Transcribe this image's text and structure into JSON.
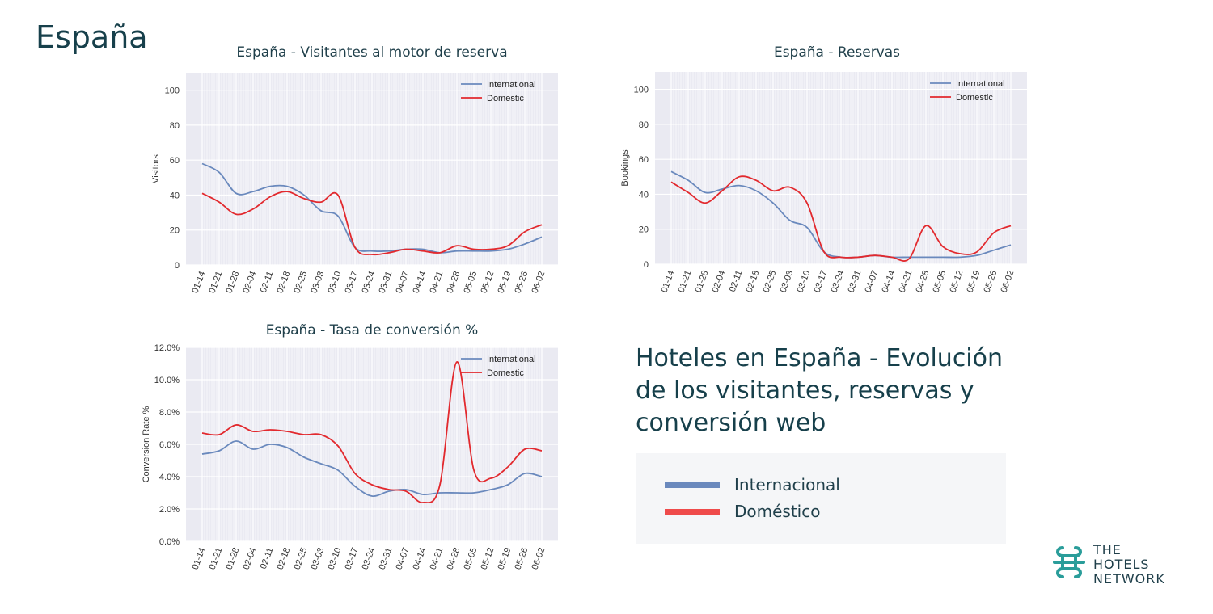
{
  "page": {
    "title": "España"
  },
  "headline": {
    "text": "Hoteles en España - Evolución de los visitantes, reservas y conversión web"
  },
  "legend": {
    "items": [
      {
        "label": "Internacional",
        "color": "#6a89bd"
      },
      {
        "label": "Doméstico",
        "color": "#ef4b4b"
      }
    ]
  },
  "logo": {
    "lines": [
      "THE",
      "HOTELS",
      "NETWORK"
    ],
    "color": "#2a9d9a"
  },
  "colors": {
    "international": "#6a89bd",
    "domestic": "#e2292e",
    "plot_bg": "#eaeaf2"
  },
  "chart_data": [
    {
      "id": "visitors",
      "type": "line",
      "title": "España - Visitantes al motor de reserva",
      "xlabel": "",
      "ylabel": "Visitors",
      "ylim": [
        0,
        110
      ],
      "yticks": [
        0,
        20,
        40,
        60,
        80,
        100
      ],
      "ytick_labels": [
        "0",
        "20",
        "40",
        "60",
        "80",
        "100"
      ],
      "grid": true,
      "legend_position": "top-right",
      "categories": [
        "01-14",
        "01-21",
        "01-28",
        "02-04",
        "02-11",
        "02-18",
        "02-25",
        "03-03",
        "03-10",
        "03-17",
        "03-24",
        "03-31",
        "04-07",
        "04-14",
        "04-21",
        "04-28",
        "05-05",
        "05-12",
        "05-19",
        "05-26",
        "06-02"
      ],
      "series": [
        {
          "name": "International",
          "color": "#6a89bd",
          "values": [
            58,
            53,
            41,
            42,
            45,
            45,
            40,
            31,
            28,
            10,
            8,
            8,
            9,
            9,
            7,
            8,
            8,
            8,
            9,
            12,
            16
          ]
        },
        {
          "name": "Domestic",
          "color": "#e2292e",
          "values": [
            41,
            36,
            29,
            32,
            39,
            42,
            38,
            36,
            40,
            10,
            6,
            7,
            9,
            8,
            7,
            11,
            9,
            9,
            11,
            19,
            23
          ]
        }
      ]
    },
    {
      "id": "bookings",
      "type": "line",
      "title": "España - Reservas",
      "xlabel": "",
      "ylabel": "Bookings",
      "ylim": [
        0,
        110
      ],
      "yticks": [
        0,
        20,
        40,
        60,
        80,
        100
      ],
      "ytick_labels": [
        "0",
        "20",
        "40",
        "60",
        "80",
        "100"
      ],
      "grid": true,
      "legend_position": "top-right",
      "categories": [
        "01-14",
        "01-21",
        "01-28",
        "02-04",
        "02-11",
        "02-18",
        "02-25",
        "03-03",
        "03-10",
        "03-17",
        "03-24",
        "03-31",
        "04-07",
        "04-14",
        "04-21",
        "04-28",
        "05-05",
        "05-12",
        "05-19",
        "05-26",
        "06-02"
      ],
      "series": [
        {
          "name": "International",
          "color": "#6a89bd",
          "values": [
            53,
            48,
            41,
            43,
            45,
            42,
            35,
            25,
            21,
            7,
            4,
            4,
            5,
            4,
            4,
            4,
            4,
            4,
            5,
            8,
            11
          ]
        },
        {
          "name": "Domestic",
          "color": "#e2292e",
          "values": [
            47,
            41,
            35,
            42,
            50,
            48,
            42,
            44,
            35,
            7,
            4,
            4,
            5,
            4,
            3,
            22,
            10,
            6,
            7,
            18,
            22
          ]
        }
      ]
    },
    {
      "id": "conversion",
      "type": "line",
      "title": "España - Tasa de conversión %",
      "xlabel": "",
      "ylabel": "Conversion Rate %",
      "ylim": [
        0,
        12
      ],
      "yticks": [
        0,
        2,
        4,
        6,
        8,
        10,
        12
      ],
      "ytick_labels": [
        "0.0%",
        "2.0%",
        "4.0%",
        "6.0%",
        "8.0%",
        "10.0%",
        "12.0%"
      ],
      "grid": true,
      "legend_position": "top-right",
      "categories": [
        "01-14",
        "01-21",
        "01-28",
        "02-04",
        "02-11",
        "02-18",
        "02-25",
        "03-03",
        "03-10",
        "03-17",
        "03-24",
        "03-31",
        "04-07",
        "04-14",
        "04-21",
        "04-28",
        "05-05",
        "05-12",
        "05-19",
        "05-26",
        "06-02"
      ],
      "series": [
        {
          "name": "International",
          "color": "#6a89bd",
          "values": [
            5.4,
            5.6,
            6.2,
            5.7,
            6.0,
            5.8,
            5.2,
            4.8,
            4.4,
            3.4,
            2.8,
            3.1,
            3.2,
            2.9,
            3.0,
            3.0,
            3.0,
            3.2,
            3.5,
            4.2,
            4.0
          ]
        },
        {
          "name": "Domestic",
          "color": "#e2292e",
          "values": [
            6.7,
            6.6,
            7.2,
            6.8,
            6.9,
            6.8,
            6.6,
            6.6,
            5.9,
            4.2,
            3.5,
            3.2,
            3.1,
            2.4,
            3.5,
            11.1,
            4.4,
            3.9,
            4.6,
            5.7,
            5.6
          ]
        }
      ]
    }
  ]
}
